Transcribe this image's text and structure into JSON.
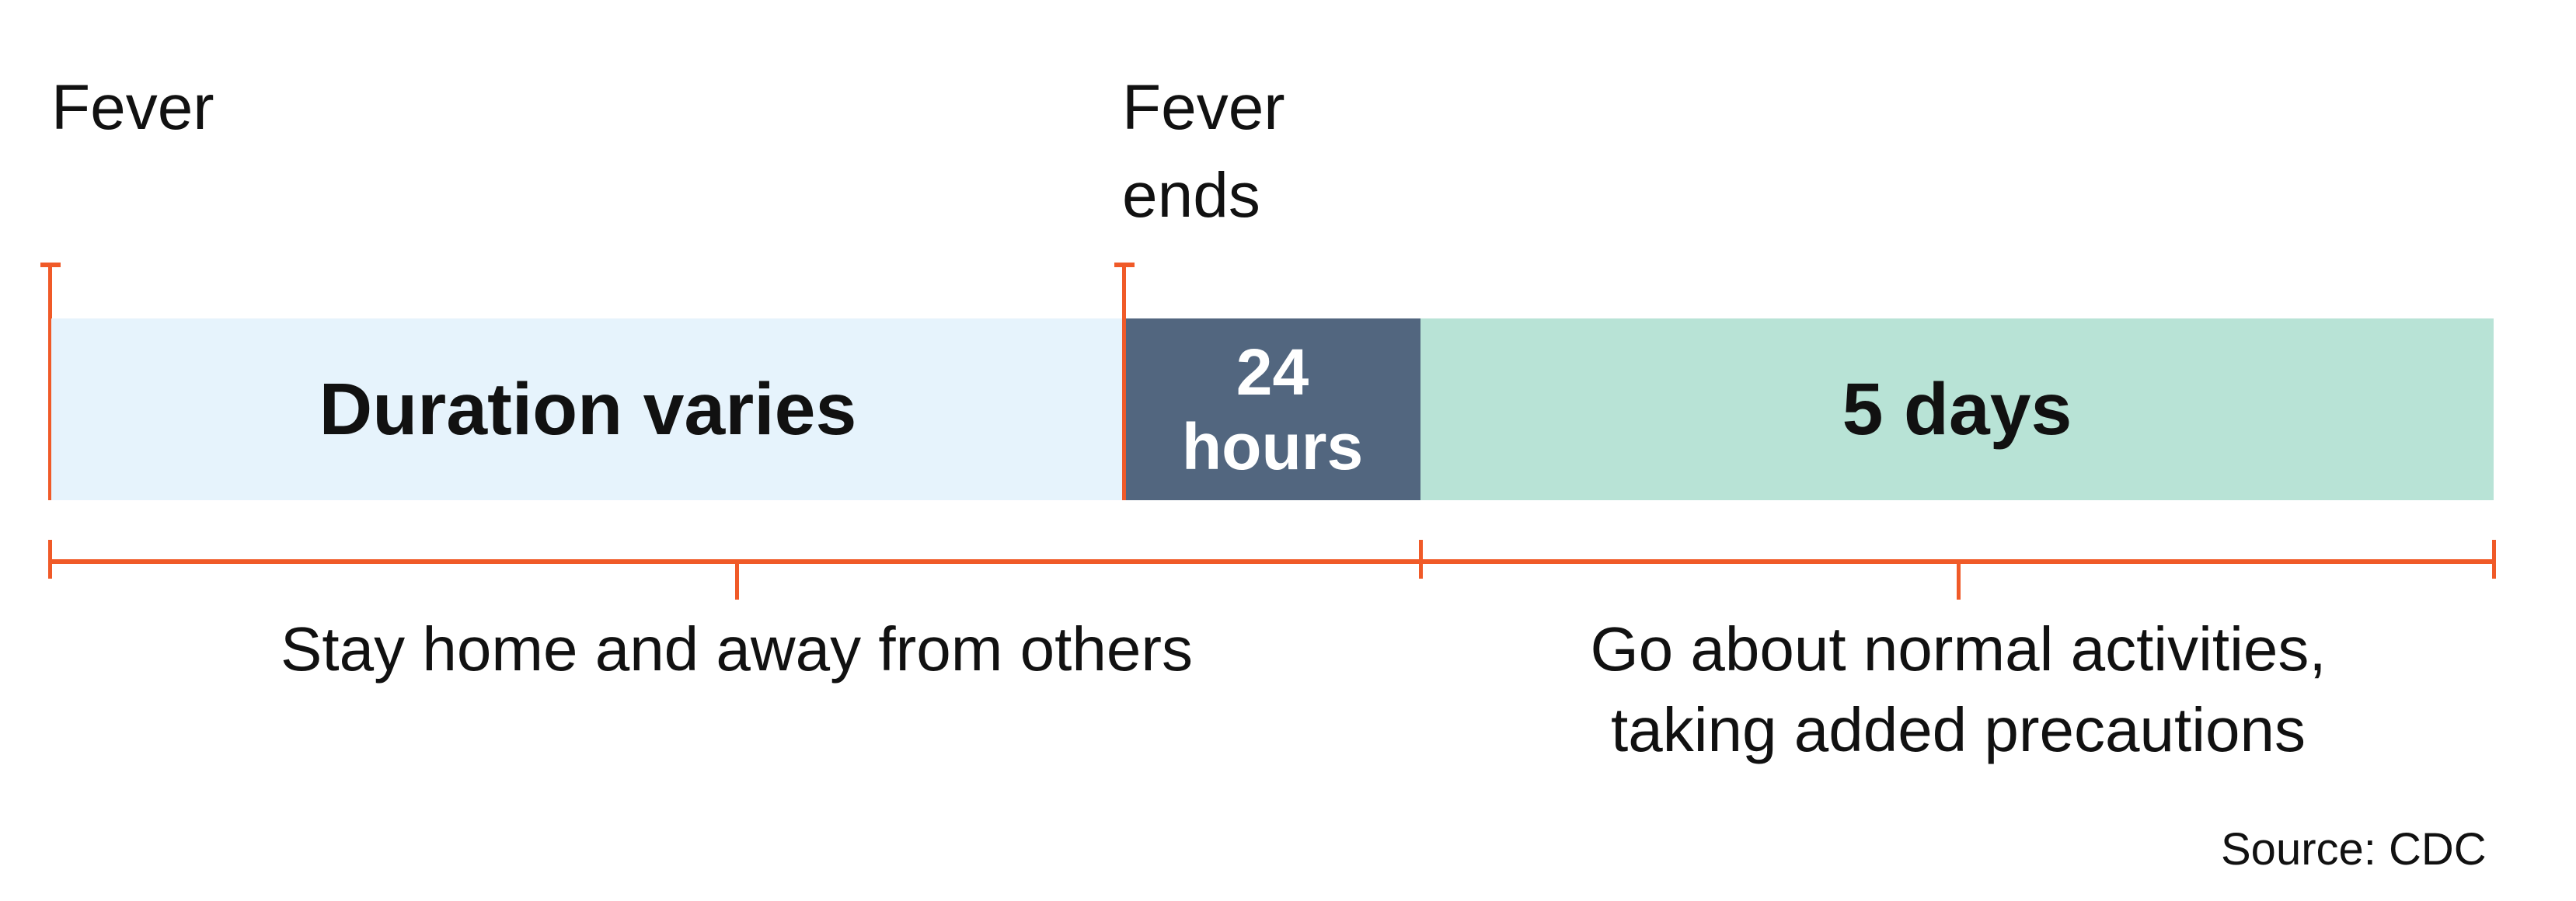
{
  "markers": {
    "start": "Fever",
    "end": [
      "Fever",
      "ends"
    ]
  },
  "segments": [
    {
      "label": "Duration varies",
      "color": "#e6f3fc",
      "text_color": "#111111"
    },
    {
      "label_lines": [
        "24",
        "hours"
      ],
      "color": "#52667f",
      "text_color": "#ffffff"
    },
    {
      "label": "5 days",
      "color": "#b8e3d6",
      "text_color": "#111111"
    }
  ],
  "phases": [
    {
      "label": "Stay home and away from others"
    },
    {
      "label_lines": [
        "Go about normal activities,",
        "taking added precautions"
      ]
    }
  ],
  "accent_color": "#f05a28",
  "source": "Source: CDC"
}
